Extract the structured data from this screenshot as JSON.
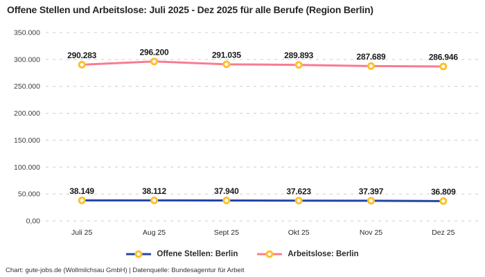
{
  "chart_data": {
    "type": "line",
    "title": "Offene Stellen und Arbeitslose: Juli 2025 - Dez 2025 für alle Berufe (Region Berlin)",
    "categories": [
      "Juli 25",
      "Aug 25",
      "Sept 25",
      "Okt 25",
      "Nov 25",
      "Dez 25"
    ],
    "series": [
      {
        "name": "Offene Stellen: Berlin",
        "color": "#2343a5",
        "values": [
          38149,
          38112,
          37940,
          37623,
          37397,
          36809
        ],
        "labels": [
          "38.149",
          "38.112",
          "37.940",
          "37.623",
          "37.397",
          "36.809"
        ]
      },
      {
        "name": "Arbeitslose: Berlin",
        "color": "#f87c90",
        "values": [
          290283,
          296200,
          291035,
          289893,
          287689,
          286946
        ],
        "labels": [
          "290.283",
          "296.200",
          "291.035",
          "289.893",
          "287.689",
          "286.946"
        ]
      }
    ],
    "y_axis": {
      "min": 0,
      "max": 350000,
      "ticks": [
        {
          "value": 350000,
          "label": "350.000"
        },
        {
          "value": 300000,
          "label": "300.000"
        },
        {
          "value": 250000,
          "label": "250.000"
        },
        {
          "value": 200000,
          "label": "200.000"
        },
        {
          "value": 150000,
          "label": "150.000"
        },
        {
          "value": 100000,
          "label": "100.000"
        },
        {
          "value": 50000,
          "label": "50.000"
        },
        {
          "value": 0,
          "label": "0,00"
        }
      ]
    },
    "grid": "horizontal-dashed",
    "legend_position": "bottom",
    "marker_color": "#fbc12d",
    "grid_color": "#cccccc"
  },
  "attribution": "Chart: gute-jobs.de (Wollmilchsau GmbH) | Datenquelle: Bundesagentur für Arbeit"
}
